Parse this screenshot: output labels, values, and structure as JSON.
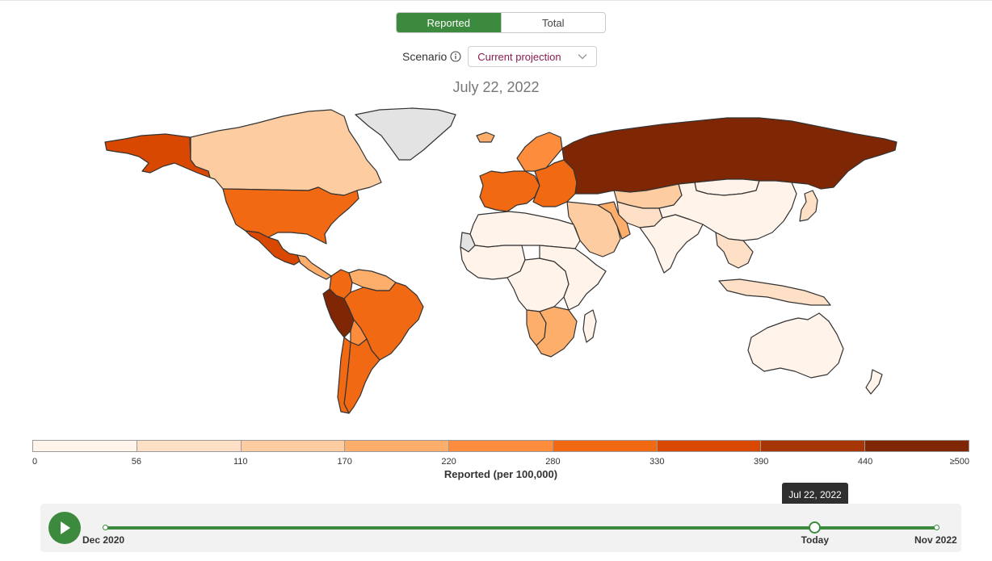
{
  "toggle": {
    "options": [
      "Reported",
      "Total"
    ],
    "selected": "Reported"
  },
  "scenario": {
    "label": "Scenario",
    "selected": "Current projection"
  },
  "date_title": "July 22, 2022",
  "legend": {
    "title": "Reported (per 100,000)",
    "ticks": [
      "0",
      "56",
      "110",
      "170",
      "220",
      "280",
      "330",
      "390",
      "440",
      "≥500"
    ],
    "colors": [
      "#fff3ea",
      "#fde0c5",
      "#fdcca0",
      "#fdae6b",
      "#fd8d3c",
      "#f16913",
      "#d94801",
      "#a63603",
      "#7f2704"
    ]
  },
  "timeline": {
    "start_label": "Dec 2020",
    "end_label": "Nov 2022",
    "current_label": "Today",
    "tooltip": "Jul 22, 2022",
    "position_fraction": 0.853
  },
  "map_data": {
    "no_data_color": "#e3e3e3",
    "regions": [
      {
        "name": "Alaska",
        "bin": 6
      },
      {
        "name": "Canada",
        "bin": 2
      },
      {
        "name": "Greenland",
        "bin": -1
      },
      {
        "name": "United States",
        "bin": 5
      },
      {
        "name": "Mexico",
        "bin": 6
      },
      {
        "name": "Central America",
        "bin": 3
      },
      {
        "name": "Colombia",
        "bin": 5
      },
      {
        "name": "Venezuela",
        "bin": 3
      },
      {
        "name": "Peru",
        "bin": 8
      },
      {
        "name": "Brazil",
        "bin": 5
      },
      {
        "name": "Bolivia",
        "bin": 4
      },
      {
        "name": "Argentina",
        "bin": 5
      },
      {
        "name": "Chile",
        "bin": 5
      },
      {
        "name": "Iceland",
        "bin": 3
      },
      {
        "name": "Scandinavia",
        "bin": 4
      },
      {
        "name": "Western Europe",
        "bin": 5
      },
      {
        "name": "Eastern Europe",
        "bin": 5
      },
      {
        "name": "Russia",
        "bin": 8
      },
      {
        "name": "Kazakhstan",
        "bin": 2
      },
      {
        "name": "Central Asia",
        "bin": 1
      },
      {
        "name": "Mongolia",
        "bin": 0
      },
      {
        "name": "China",
        "bin": 0
      },
      {
        "name": "Middle East",
        "bin": 2
      },
      {
        "name": "Iran",
        "bin": 3
      },
      {
        "name": "India",
        "bin": 0
      },
      {
        "name": "Southeast Asia",
        "bin": 1
      },
      {
        "name": "Indonesia",
        "bin": 1
      },
      {
        "name": "Japan",
        "bin": 1
      },
      {
        "name": "North Africa",
        "bin": 0
      },
      {
        "name": "Western Sahara",
        "bin": -1
      },
      {
        "name": "West Africa",
        "bin": 0
      },
      {
        "name": "Central Africa",
        "bin": 0
      },
      {
        "name": "East Africa",
        "bin": 0
      },
      {
        "name": "Namibia",
        "bin": 3
      },
      {
        "name": "South Africa",
        "bin": 3
      },
      {
        "name": "Madagascar",
        "bin": 0
      },
      {
        "name": "Australia",
        "bin": 0
      },
      {
        "name": "New Zealand",
        "bin": 0
      }
    ]
  }
}
